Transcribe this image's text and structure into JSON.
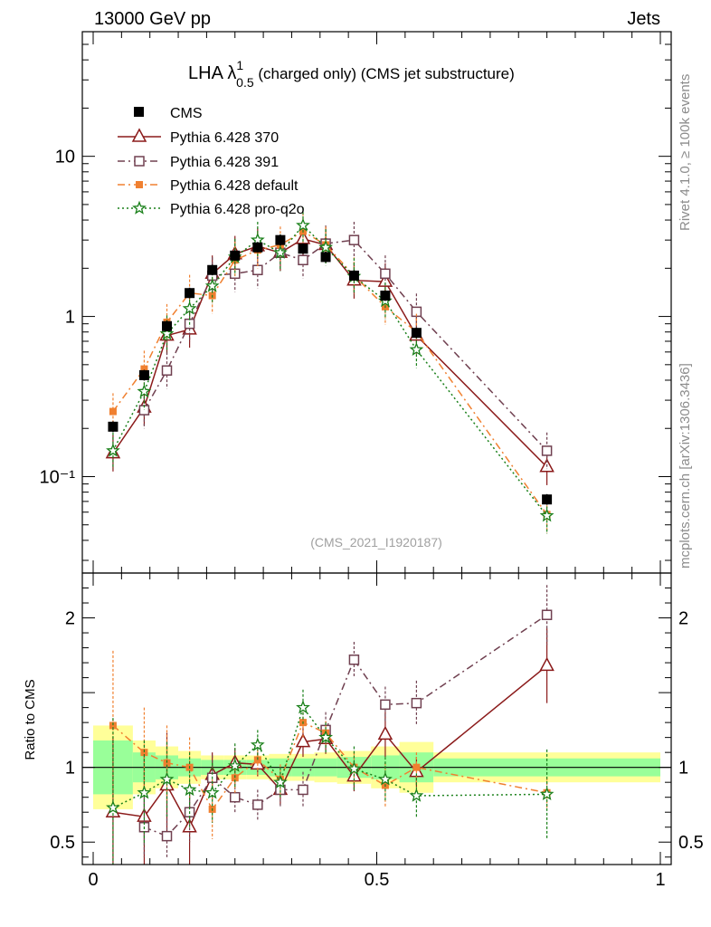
{
  "header": {
    "left": "13000 GeV pp",
    "right": "Jets",
    "rivet_note": "Rivet 4.1.0, ≥ 100k events",
    "mcplots_note": "mcplots.cern.ch [arXiv:1306.3436]",
    "analysis_id": "(CMS_2021_I1920187)"
  },
  "chart_data": {
    "type": "scatter",
    "title": {
      "prefix": "LHA λ",
      "sup": "1",
      "sub": "0.5",
      "suffix": " (charged only) (CMS jet substructure)"
    },
    "main_panel": {
      "yscale": "log",
      "ylim": [
        0.025,
        60
      ],
      "xlim": [
        -0.02,
        1.0
      ],
      "yticks": [
        {
          "value": 0.1,
          "label": "10⁻¹"
        },
        {
          "value": 1,
          "label": "1"
        },
        {
          "value": 10,
          "label": "10"
        }
      ]
    },
    "ratio_panel": {
      "ylabel": "Ratio to CMS",
      "ylim": [
        0.35,
        2.3
      ],
      "yticks": [
        {
          "value": 0.5,
          "label": "0.5"
        },
        {
          "value": 1,
          "label": "1"
        },
        {
          "value": 2,
          "label": "2"
        }
      ]
    },
    "xticks": [
      {
        "value": 0,
        "label": "0"
      },
      {
        "value": 0.5,
        "label": "0.5"
      },
      {
        "value": 1,
        "label": "1"
      }
    ],
    "bins": [
      [
        0.0,
        0.07
      ],
      [
        0.07,
        0.11
      ],
      [
        0.11,
        0.15
      ],
      [
        0.15,
        0.19
      ],
      [
        0.19,
        0.23
      ],
      [
        0.23,
        0.27
      ],
      [
        0.27,
        0.31
      ],
      [
        0.31,
        0.35
      ],
      [
        0.35,
        0.39
      ],
      [
        0.39,
        0.43
      ],
      [
        0.43,
        0.49
      ],
      [
        0.49,
        0.54
      ],
      [
        0.54,
        0.6
      ],
      [
        0.6,
        1.0
      ]
    ],
    "bin_centers": [
      0.035,
      0.09,
      0.13,
      0.17,
      0.21,
      0.25,
      0.29,
      0.33,
      0.37,
      0.41,
      0.46,
      0.515,
      0.57,
      0.8
    ],
    "data": {
      "name": "CMS",
      "values": [
        0.205,
        0.43,
        0.87,
        1.4,
        1.95,
        2.4,
        2.7,
        3.0,
        2.65,
        2.35,
        1.8,
        1.35,
        0.79,
        0.072
      ],
      "ratio_band_inner": [
        0.18,
        0.1,
        0.08,
        0.06,
        0.05,
        0.05,
        0.05,
        0.06,
        0.06,
        0.06,
        0.07,
        0.08,
        0.1,
        0.06
      ],
      "ratio_band_outer": [
        0.28,
        0.18,
        0.14,
        0.11,
        0.08,
        0.08,
        0.08,
        0.09,
        0.09,
        0.1,
        0.11,
        0.14,
        0.17,
        0.1
      ]
    },
    "series": [
      {
        "name": "Pythia 6.428 370",
        "color": "#8b1a1a",
        "dash": "",
        "marker": "triangle-open",
        "points": [
          0.035,
          0.09,
          0.13,
          0.17,
          0.21,
          0.25,
          0.29,
          0.33,
          0.37,
          0.41,
          0.46,
          0.515,
          0.57,
          0.8
        ],
        "values": [
          0.14,
          0.27,
          0.76,
          0.83,
          1.85,
          2.45,
          2.75,
          2.5,
          3.05,
          2.8,
          1.68,
          1.65,
          0.76,
          0.115
        ],
        "ratio": [
          0.7,
          0.67,
          0.88,
          0.6,
          0.95,
          1.03,
          1.02,
          0.85,
          1.17,
          1.19,
          0.94,
          1.22,
          0.97,
          1.68
        ],
        "ratio_err": [
          0.5,
          0.45,
          0.35,
          0.25,
          0.15,
          0.1,
          0.08,
          0.1,
          0.1,
          0.1,
          0.1,
          0.15,
          0.1,
          0.25
        ]
      },
      {
        "name": "Pythia 6.428 391",
        "color": "#704050",
        "dash": "8,4,2,4",
        "marker": "square-open",
        "points": [
          0.09,
          0.13,
          0.17,
          0.21,
          0.25,
          0.29,
          0.33,
          0.37,
          0.41,
          0.46,
          0.515,
          0.57,
          0.8
        ],
        "values": [
          0.26,
          0.46,
          0.9,
          1.8,
          1.85,
          1.95,
          2.5,
          2.25,
          2.85,
          3.0,
          1.85,
          1.07,
          0.145
        ],
        "ratio": [
          0.6,
          0.54,
          0.7,
          0.93,
          0.8,
          0.75,
          0.85,
          0.85,
          1.25,
          1.72,
          1.42,
          1.43,
          2.02
        ],
        "ratio_err": [
          0.2,
          0.15,
          0.2,
          0.15,
          0.1,
          0.1,
          0.12,
          0.12,
          0.12,
          0.12,
          0.12,
          0.15,
          0.2
        ]
      },
      {
        "name": "Pythia 6.428 default",
        "color": "#f08030",
        "dash": "8,4,2,4",
        "marker": "square-filled",
        "points": [
          0.035,
          0.09,
          0.13,
          0.17,
          0.21,
          0.25,
          0.29,
          0.33,
          0.37,
          0.41,
          0.46,
          0.515,
          0.57,
          0.8
        ],
        "values": [
          0.255,
          0.47,
          0.92,
          1.4,
          1.35,
          2.25,
          2.6,
          2.8,
          3.4,
          2.8,
          1.8,
          1.15,
          0.8,
          0.058
        ],
        "ratio": [
          1.28,
          1.1,
          1.03,
          1.0,
          0.72,
          0.93,
          1.05,
          0.92,
          1.3,
          1.23,
          1.0,
          0.88,
          1.0,
          0.83
        ],
        "ratio_err": [
          0.5,
          0.3,
          0.25,
          0.2,
          0.2,
          0.1,
          0.1,
          0.1,
          0.1,
          0.08,
          0.1,
          0.15,
          0.1,
          0.1
        ]
      },
      {
        "name": "Pythia 6.428 pro-q2o",
        "color": "#1a801a",
        "dash": "2,3",
        "marker": "star",
        "points": [
          0.035,
          0.09,
          0.13,
          0.17,
          0.21,
          0.25,
          0.29,
          0.33,
          0.37,
          0.41,
          0.46,
          0.515,
          0.57,
          0.8
        ],
        "values": [
          0.145,
          0.34,
          0.78,
          1.12,
          1.55,
          2.35,
          3.0,
          2.5,
          3.7,
          2.7,
          1.78,
          1.25,
          0.62,
          0.057
        ],
        "ratio": [
          0.73,
          0.83,
          0.92,
          0.85,
          0.83,
          1.01,
          1.15,
          0.9,
          1.4,
          1.2,
          0.99,
          0.92,
          0.81,
          0.82
        ],
        "ratio_err": [
          0.6,
          0.35,
          0.25,
          0.25,
          0.2,
          0.15,
          0.1,
          0.1,
          0.12,
          0.1,
          0.15,
          0.15,
          0.15,
          0.3
        ]
      }
    ]
  }
}
